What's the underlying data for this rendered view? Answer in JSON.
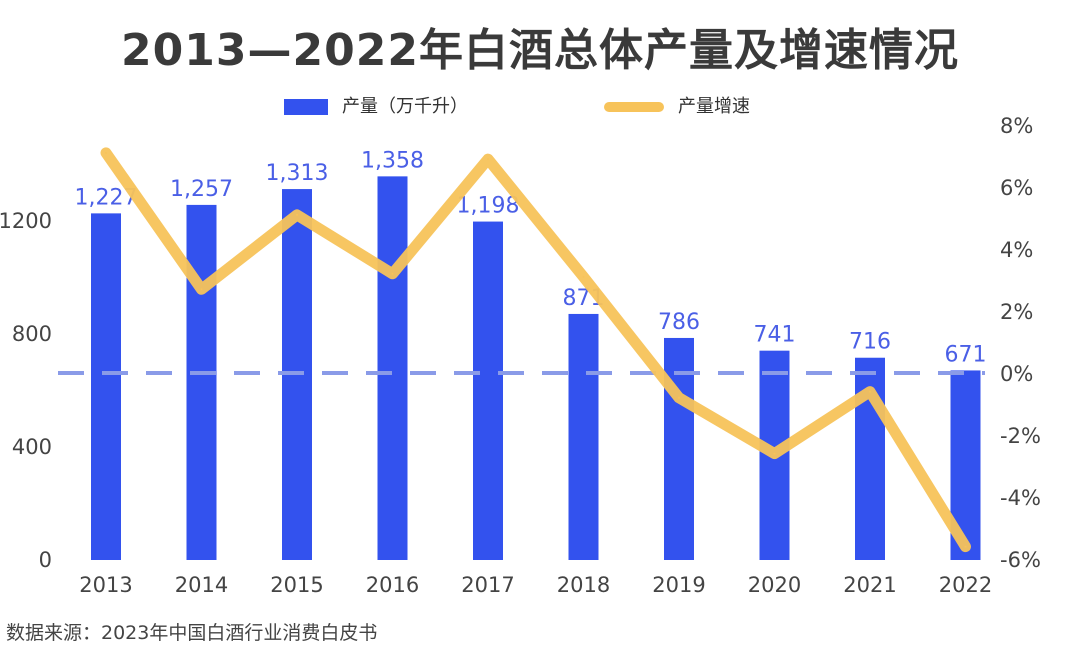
{
  "title": "2013—2022年白酒总体产量及增速情况",
  "source": "数据来源：2023年中国白酒行业消费白皮书",
  "colors": {
    "bar": "#3352ee",
    "line": "#f7c35a",
    "zero_line": "#8a9be8",
    "label": "#4a5fe6"
  },
  "chart_data": {
    "type": "bar+line",
    "title": "2013—2022年白酒总体产量及增速情况",
    "categories": [
      "2013",
      "2014",
      "2015",
      "2016",
      "2017",
      "2018",
      "2019",
      "2020",
      "2021",
      "2022"
    ],
    "series": [
      {
        "name": "产量（万千升）",
        "type": "bar",
        "axis": "left",
        "values": [
          1227,
          1257,
          1313,
          1358,
          1198,
          871,
          786,
          741,
          716,
          671
        ],
        "labels": [
          "1,227",
          "1,257",
          "1,313",
          "1,358",
          "1,198",
          "871",
          "786",
          "741",
          "716",
          "671"
        ]
      },
      {
        "name": "产量增速",
        "type": "line",
        "axis": "right",
        "values": [
          7.1,
          2.7,
          5.1,
          3.2,
          6.9,
          3.1,
          -0.8,
          -2.6,
          -0.6,
          -5.6
        ]
      }
    ],
    "left_axis": {
      "ticks": [
        0,
        400,
        800,
        1200
      ],
      "tick_labels": [
        "0",
        "400",
        "800",
        "1200"
      ],
      "range": [
        0,
        1400
      ]
    },
    "right_axis": {
      "ticks": [
        -6,
        -4,
        -2,
        0,
        2,
        4,
        6,
        8
      ],
      "tick_labels": [
        "-6%",
        "-4%",
        "-2%",
        "0%",
        "2%",
        "4%",
        "6%",
        "8%"
      ],
      "range": [
        -6,
        8
      ]
    },
    "zero_line": "dashed at 0%",
    "legend_position": "top"
  }
}
